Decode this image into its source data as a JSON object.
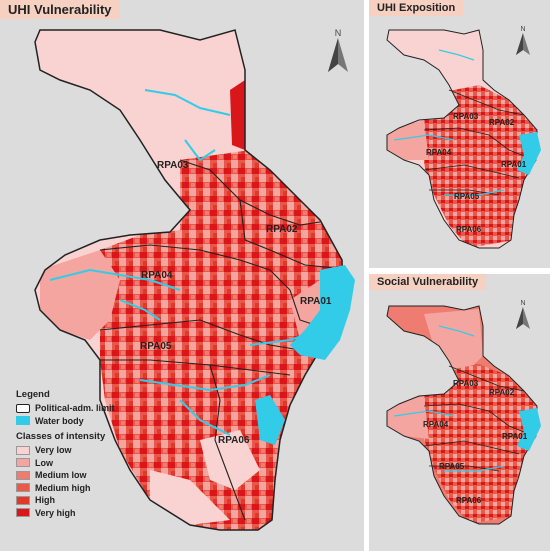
{
  "panels": {
    "main": {
      "title": "UHI Vulnerability"
    },
    "exposition": {
      "title": "UHI Exposition"
    },
    "social": {
      "title": "Social Vulnerability"
    }
  },
  "north_label": "N",
  "regions": {
    "rpa01": "RPA01",
    "rpa02": "RPA02",
    "rpa03": "RPA03",
    "rpa04": "RPA04",
    "rpa05": "RPA05",
    "rpa06": "RPA06"
  },
  "legend": {
    "title": "Legend",
    "limit": "Political-adm. limit",
    "water": "Water body",
    "classes_title": "Classes of intensity",
    "classes": [
      {
        "label": "Very low",
        "color": "#f9d3d2"
      },
      {
        "label": "Low",
        "color": "#f4a5a0"
      },
      {
        "label": "Medium low",
        "color": "#ee7c70"
      },
      {
        "label": "Medium high",
        "color": "#ea5a48"
      },
      {
        "label": "High",
        "color": "#e3372a"
      },
      {
        "label": "Very high",
        "color": "#d9161a"
      }
    ]
  },
  "colors": {
    "background": "#dcdcdc",
    "water": "#33cce8",
    "title_bg": "#f6d0c0"
  }
}
